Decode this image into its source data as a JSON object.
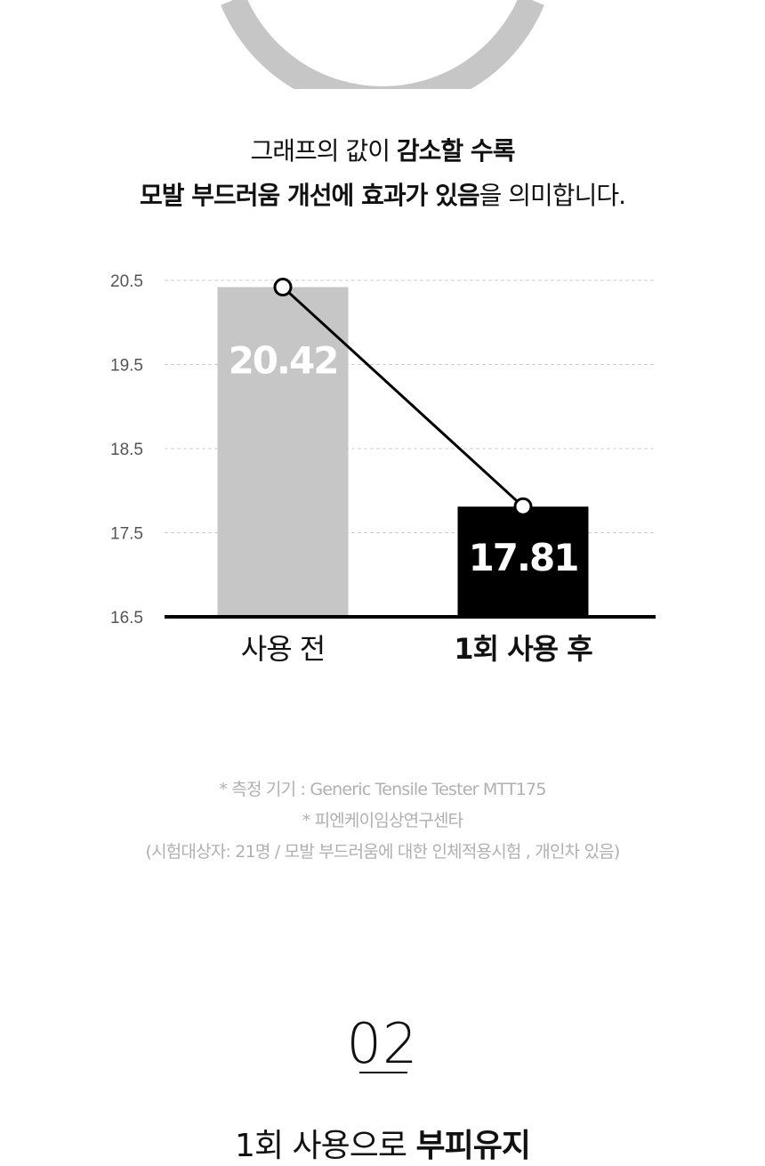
{
  "headline": {
    "line1_light": "그래프의 값이 ",
    "line1_bold": "감소할 수록",
    "line2_bold": "모발 부드러움 개선에 효과가 있음",
    "line2_light": "을 의미합니다."
  },
  "colors": {
    "before_bar": "#c6c6c6",
    "after_bar": "#000000",
    "arc": "#c6c6c6",
    "gridline": "#cccccc",
    "note_text": "#b0b0b0"
  },
  "chart_data": {
    "type": "bar",
    "categories": [
      "사용 전",
      "1회 사용 후"
    ],
    "values": [
      20.42,
      17.81
    ],
    "value_labels": [
      "20.42",
      "17.81"
    ],
    "yticks": [
      "20.5",
      "19.5",
      "18.5",
      "17.5",
      "16.5"
    ],
    "ylim": [
      16.5,
      20.5
    ],
    "grid": true,
    "overlay": "line connecting bar tops"
  },
  "notes": {
    "line1": "* 측정 기기 : Generic Tensile Tester MTT175",
    "line2": "* 피엔케이임상연구센타",
    "line3": "(시험대상자: 21명 /  모발 부드러움에 대한 인체적용시험 , 개인차 있음)"
  },
  "section": {
    "number": "02",
    "next_heading_light": "1회 사용으로 ",
    "next_heading_bold": "부피유지"
  }
}
